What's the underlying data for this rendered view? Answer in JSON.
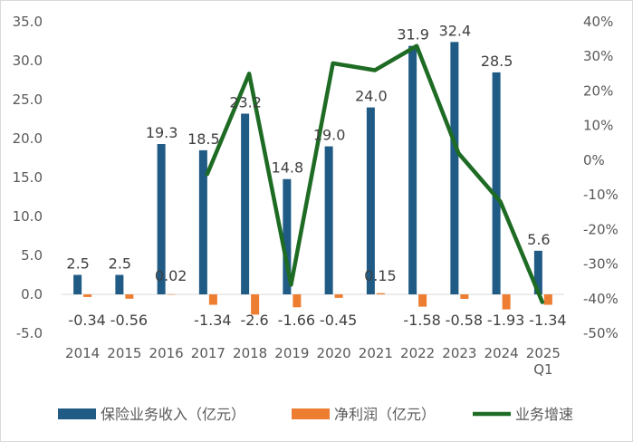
{
  "chart_data": {
    "type": "bar",
    "categories": [
      "2014",
      "2015",
      "2016",
      "2017",
      "2018",
      "2019",
      "2020",
      "2021",
      "2022",
      "2023",
      "2024",
      "2025\nQ1"
    ],
    "category_labels": [
      [
        "2014"
      ],
      [
        "2015"
      ],
      [
        "2016"
      ],
      [
        "2017"
      ],
      [
        "2018"
      ],
      [
        "2019"
      ],
      [
        "2020"
      ],
      [
        "2021"
      ],
      [
        "2022"
      ],
      [
        "2023"
      ],
      [
        "2024"
      ],
      [
        "2025",
        "Q1"
      ]
    ],
    "series": [
      {
        "name": "保险业务收入（亿元）",
        "type": "bar",
        "axis": "left",
        "color": "#1f5b85",
        "values": [
          2.5,
          2.5,
          19.3,
          18.5,
          23.2,
          14.8,
          19.0,
          24.0,
          31.9,
          32.4,
          28.5,
          5.6
        ],
        "labels": [
          "2.5",
          "2.5",
          "19.3",
          "18.5",
          "23.2",
          "14.8",
          "19.0",
          "24.0",
          "31.9",
          "32.4",
          "28.5",
          "5.6"
        ]
      },
      {
        "name": "净利润（亿元）",
        "type": "bar",
        "axis": "left",
        "color": "#ed7d31",
        "values": [
          -0.34,
          -0.56,
          0.02,
          -1.34,
          -2.6,
          -1.66,
          -0.45,
          0.15,
          -1.58,
          -0.58,
          -1.93,
          -1.34
        ],
        "labels": [
          "-0.34",
          "-0.56",
          "0.02",
          "-1.34",
          "-2.6",
          "-1.66",
          "-0.45",
          "0.15",
          "-1.58",
          "-0.58",
          "-1.93",
          "-1.34"
        ]
      },
      {
        "name": "业务增速",
        "type": "line",
        "axis": "right",
        "color": "#1e6b24",
        "values": [
          null,
          null,
          null,
          -4,
          25,
          -36,
          28,
          26,
          33,
          2,
          -12,
          -41
        ]
      }
    ],
    "left_axis": {
      "ylim": [
        -5.0,
        35.0
      ],
      "ticks": [
        "-5.0",
        "0.0",
        "5.0",
        "10.0",
        "15.0",
        "20.0",
        "25.0",
        "30.0",
        "35.0"
      ]
    },
    "right_axis": {
      "ylim": [
        -50,
        40
      ],
      "ticks": [
        "-50%",
        "-40%",
        "-30%",
        "-20%",
        "-10%",
        "0%",
        "10%",
        "20%",
        "30%",
        "40%"
      ]
    },
    "legend_position": "bottom",
    "grid": false
  }
}
